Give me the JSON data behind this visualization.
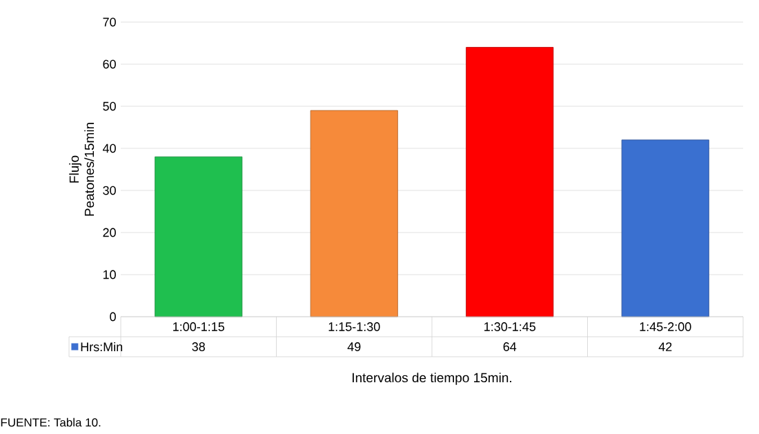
{
  "chart_data": {
    "type": "bar",
    "categories": [
      "1:00-1:15",
      "1:15-1:30",
      "1:30-1:45",
      "1:45-2:00"
    ],
    "series": [
      {
        "name": "Hrs:Min",
        "color": "#3c6fd0",
        "values": [
          38,
          49,
          64,
          42
        ],
        "colors": [
          "#1fbf4f",
          "#f68a3a",
          "#ff0000",
          "#3a70d0"
        ]
      }
    ],
    "ylabel": "Flujo Peatones/15min",
    "xlabel": "Intervalos de tiempo 15min.",
    "annotations": [
      "FUENTE: Tabla 10."
    ],
    "ylim": [
      0,
      70
    ],
    "yticks": [
      0,
      10,
      20,
      30,
      40,
      50,
      60,
      70
    ],
    "grid": "y",
    "legend": "bottom",
    "data_labels": true
  }
}
